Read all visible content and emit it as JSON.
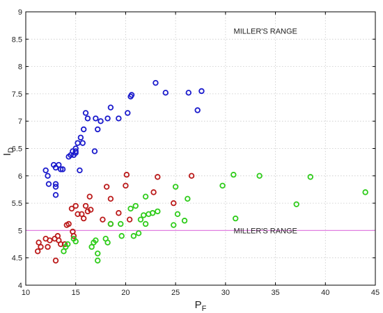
{
  "chart_data": {
    "type": "scatter",
    "xlabel": "P",
    "xlabel_sub": "F",
    "ylabel": "I",
    "ylabel_sub": "D",
    "xlim": [
      10,
      45
    ],
    "ylim": [
      4,
      9
    ],
    "xticks": [
      10,
      15,
      20,
      25,
      30,
      35,
      40,
      45
    ],
    "yticks": [
      4,
      4.5,
      5,
      5.5,
      6,
      6.5,
      7,
      7.5,
      8,
      8.5,
      9
    ],
    "ytick_labels": [
      "4",
      "4.5",
      "5",
      "5.5",
      "6",
      "6.5",
      "7",
      "7.5",
      "8",
      "8.5",
      "9"
    ],
    "grid": true,
    "reference_line": {
      "y": 5,
      "color": "#e07fe0"
    },
    "annotations": [
      {
        "text": "MILLER'S RANGE",
        "x": 34,
        "y": 8.6
      },
      {
        "text": "MILLER'S RANGE",
        "x": 34,
        "y": 4.95
      }
    ],
    "series": [
      {
        "color": "#1a1acc",
        "points": [
          [
            12.0,
            6.1
          ],
          [
            12.2,
            6.0
          ],
          [
            12.3,
            5.85
          ],
          [
            12.8,
            6.2
          ],
          [
            13.0,
            6.15
          ],
          [
            13.0,
            5.85
          ],
          [
            13.0,
            5.8
          ],
          [
            13.0,
            5.65
          ],
          [
            13.3,
            6.2
          ],
          [
            13.5,
            6.12
          ],
          [
            13.7,
            6.12
          ],
          [
            14.3,
            6.35
          ],
          [
            14.5,
            6.38
          ],
          [
            14.7,
            6.45
          ],
          [
            14.8,
            6.38
          ],
          [
            15.0,
            6.5
          ],
          [
            15.0,
            6.45
          ],
          [
            15.0,
            6.42
          ],
          [
            15.2,
            6.6
          ],
          [
            15.4,
            6.1
          ],
          [
            15.5,
            6.7
          ],
          [
            15.7,
            6.6
          ],
          [
            15.8,
            6.85
          ],
          [
            16.0,
            7.15
          ],
          [
            16.2,
            7.05
          ],
          [
            16.9,
            6.45
          ],
          [
            17.0,
            7.05
          ],
          [
            17.2,
            6.85
          ],
          [
            17.5,
            7.0
          ],
          [
            18.2,
            7.05
          ],
          [
            18.5,
            7.25
          ],
          [
            19.3,
            7.05
          ],
          [
            20.2,
            7.15
          ],
          [
            20.5,
            7.45
          ],
          [
            20.6,
            7.48
          ],
          [
            23.0,
            7.7
          ],
          [
            24.0,
            7.52
          ],
          [
            26.3,
            7.52
          ],
          [
            27.2,
            7.2
          ],
          [
            27.6,
            7.55
          ]
        ]
      },
      {
        "color": "#bb1a1a",
        "points": [
          [
            11.2,
            4.62
          ],
          [
            11.3,
            4.78
          ],
          [
            11.5,
            4.7
          ],
          [
            12.0,
            4.85
          ],
          [
            12.2,
            4.7
          ],
          [
            12.4,
            4.82
          ],
          [
            12.9,
            4.85
          ],
          [
            13.0,
            4.45
          ],
          [
            13.2,
            4.9
          ],
          [
            13.3,
            4.82
          ],
          [
            13.5,
            4.75
          ],
          [
            13.9,
            4.75
          ],
          [
            14.1,
            5.1
          ],
          [
            14.3,
            5.12
          ],
          [
            14.6,
            5.4
          ],
          [
            14.7,
            4.98
          ],
          [
            14.8,
            4.9
          ],
          [
            15.0,
            5.45
          ],
          [
            15.2,
            5.3
          ],
          [
            15.6,
            5.3
          ],
          [
            15.8,
            5.22
          ],
          [
            16.0,
            5.45
          ],
          [
            16.2,
            5.35
          ],
          [
            16.4,
            5.62
          ],
          [
            16.5,
            5.38
          ],
          [
            17.7,
            5.2
          ],
          [
            18.1,
            5.8
          ],
          [
            18.5,
            5.58
          ],
          [
            18.5,
            5.12
          ],
          [
            19.3,
            5.32
          ],
          [
            20.0,
            5.82
          ],
          [
            20.1,
            6.02
          ],
          [
            20.4,
            5.2
          ],
          [
            22.8,
            5.7
          ],
          [
            23.2,
            5.98
          ],
          [
            24.8,
            5.5
          ],
          [
            26.6,
            6.0
          ]
        ]
      },
      {
        "color": "#2ecc1a",
        "points": [
          [
            13.8,
            4.62
          ],
          [
            14.0,
            4.7
          ],
          [
            14.2,
            4.75
          ],
          [
            14.8,
            4.85
          ],
          [
            15.0,
            4.8
          ],
          [
            16.6,
            4.7
          ],
          [
            16.8,
            4.78
          ],
          [
            17.0,
            4.82
          ],
          [
            17.2,
            4.45
          ],
          [
            17.2,
            4.58
          ],
          [
            18.0,
            4.85
          ],
          [
            18.2,
            4.78
          ],
          [
            18.5,
            5.12
          ],
          [
            19.5,
            5.12
          ],
          [
            19.6,
            4.9
          ],
          [
            20.5,
            5.4
          ],
          [
            20.8,
            4.9
          ],
          [
            21.0,
            5.45
          ],
          [
            21.3,
            4.95
          ],
          [
            21.5,
            5.2
          ],
          [
            21.8,
            5.28
          ],
          [
            22.0,
            5.62
          ],
          [
            22.0,
            5.12
          ],
          [
            22.3,
            5.3
          ],
          [
            22.7,
            5.32
          ],
          [
            23.2,
            5.35
          ],
          [
            24.8,
            5.1
          ],
          [
            25.0,
            5.8
          ],
          [
            25.2,
            5.3
          ],
          [
            25.9,
            5.18
          ],
          [
            26.2,
            5.58
          ],
          [
            29.7,
            5.82
          ],
          [
            30.8,
            6.02
          ],
          [
            31.0,
            5.22
          ],
          [
            33.4,
            6.0
          ],
          [
            37.1,
            5.48
          ],
          [
            38.5,
            5.98
          ],
          [
            44.0,
            5.7
          ]
        ]
      }
    ]
  }
}
